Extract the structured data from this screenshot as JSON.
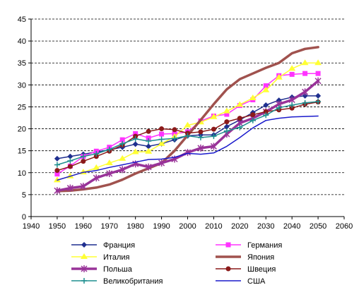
{
  "chart_data": {
    "type": "line",
    "title": "",
    "xlabel": "",
    "ylabel": "",
    "xlim": [
      1940,
      2060
    ],
    "ylim": [
      0,
      45
    ],
    "x_ticks": [
      "1940",
      "1950",
      "1960",
      "1970",
      "1980",
      "1990",
      "2000",
      "2010",
      "2020",
      "2030",
      "2040",
      "2050",
      "2060"
    ],
    "y_ticks": [
      "0",
      "5",
      "10",
      "15",
      "20",
      "25",
      "30",
      "35",
      "40",
      "45"
    ],
    "grid": "horizontal dashed",
    "legend_position": "bottom",
    "series": [
      {
        "name": "Франция",
        "color": "#1f2f8f",
        "marker": "diamond",
        "width": 1.5,
        "x": [
          1950,
          1955,
          1960,
          1965,
          1970,
          1975,
          1980,
          1985,
          1990,
          1995,
          2000,
          2005,
          2010,
          2015,
          2020,
          2025,
          2030,
          2035,
          2040,
          2045,
          2050
        ],
        "y": [
          13.2,
          13.7,
          14.2,
          14.7,
          15.2,
          15.8,
          16.5,
          16.0,
          16.6,
          17.5,
          18.4,
          18.6,
          18.6,
          20.5,
          22.0,
          23.7,
          25.4,
          26.5,
          27.2,
          27.5,
          27.5
        ]
      },
      {
        "name": "Германия",
        "color": "#ff33ff",
        "marker": "square",
        "width": 1.5,
        "x": [
          1950,
          1955,
          1960,
          1965,
          1970,
          1975,
          1980,
          1985,
          1990,
          1995,
          2000,
          2005,
          2010,
          2015,
          2020,
          2025,
          2030,
          2035,
          2040,
          2045,
          2050
        ],
        "y": [
          9.7,
          11.5,
          13.7,
          14.9,
          15.8,
          17.5,
          18.9,
          17.9,
          18.8,
          18.9,
          19.3,
          21.8,
          22.9,
          23.3,
          25.3,
          26.6,
          29.8,
          32.1,
          32.4,
          32.6,
          32.6
        ]
      },
      {
        "name": "Италия",
        "color": "#ffff33",
        "marker": "triangle",
        "width": 1.5,
        "x": [
          1950,
          1955,
          1960,
          1965,
          1970,
          1975,
          1980,
          1985,
          1990,
          1995,
          2000,
          2005,
          2010,
          2015,
          2020,
          2025,
          2030,
          2035,
          2040,
          2045,
          2050
        ],
        "y": [
          8.3,
          9.2,
          10.1,
          11.1,
          12.2,
          13.2,
          14.7,
          14.8,
          16.6,
          18.2,
          20.8,
          21.5,
          22.7,
          24.0,
          25.5,
          27.0,
          28.8,
          31.7,
          33.7,
          35.0,
          35.0
        ]
      },
      {
        "name": "Япония",
        "color": "#a0524e",
        "marker": "none",
        "width": 3.5,
        "x": [
          1950,
          1955,
          1960,
          1965,
          1970,
          1975,
          1980,
          1985,
          1990,
          1995,
          2000,
          2005,
          2010,
          2015,
          2020,
          2025,
          2030,
          2035,
          2040,
          2045,
          2050
        ],
        "y": [
          5.8,
          5.9,
          6.2,
          6.6,
          7.3,
          8.4,
          9.8,
          11.0,
          12.2,
          15.0,
          18.5,
          22.0,
          25.6,
          29.0,
          31.3,
          32.6,
          33.9,
          35.0,
          37.2,
          38.2,
          38.6
        ]
      },
      {
        "name": "Польша",
        "color": "#993399",
        "marker": "star",
        "width": 3.5,
        "x": [
          1950,
          1955,
          1960,
          1965,
          1970,
          1975,
          1980,
          1985,
          1990,
          1995,
          2000,
          2005,
          2010,
          2015,
          2020,
          2025,
          2030,
          2035,
          2040,
          2045,
          2050
        ],
        "y": [
          5.9,
          6.5,
          6.9,
          8.8,
          9.8,
          10.7,
          12.0,
          11.3,
          12.2,
          13.1,
          14.6,
          15.6,
          16.0,
          18.8,
          21.3,
          22.4,
          23.9,
          25.6,
          26.6,
          28.4,
          30.9
        ]
      },
      {
        "name": "Швеция",
        "color": "#8b1a1a",
        "marker": "circle",
        "width": 1.5,
        "x": [
          1950,
          1955,
          1960,
          1965,
          1970,
          1975,
          1980,
          1985,
          1990,
          1995,
          2000,
          2005,
          2010,
          2015,
          2020,
          2025,
          2030,
          2035,
          2040,
          2045,
          2050
        ],
        "y": [
          10.5,
          11.4,
          12.6,
          13.7,
          14.9,
          16.3,
          18.3,
          19.4,
          20.0,
          19.8,
          19.0,
          19.3,
          19.9,
          21.6,
          22.4,
          23.2,
          23.9,
          24.3,
          24.7,
          25.6,
          26.1
        ]
      },
      {
        "name": "Великобритания",
        "color": "#1f8f8f",
        "marker": "plus",
        "width": 1.5,
        "x": [
          1950,
          1955,
          1960,
          1965,
          1970,
          1975,
          1980,
          1985,
          1990,
          1995,
          2000,
          2005,
          2010,
          2015,
          2020,
          2025,
          2030,
          2035,
          2040,
          2045,
          2050
        ],
        "y": [
          11.8,
          12.7,
          13.7,
          14.3,
          15.3,
          16.6,
          17.7,
          17.2,
          17.6,
          17.8,
          18.4,
          18.0,
          18.3,
          19.5,
          20.3,
          21.9,
          23.1,
          24.8,
          25.4,
          25.9,
          26.2
        ]
      },
      {
        "name": "США",
        "color": "#1a1acc",
        "marker": "none",
        "width": 1.5,
        "x": [
          1950,
          1955,
          1960,
          1965,
          1970,
          1975,
          1980,
          1985,
          1990,
          1995,
          2000,
          2005,
          2010,
          2015,
          2020,
          2025,
          2030,
          2035,
          2040,
          2045,
          2050
        ],
        "y": [
          8.3,
          9.2,
          10.1,
          10.5,
          11.2,
          11.8,
          12.4,
          13.0,
          13.1,
          13.5,
          14.4,
          14.2,
          14.5,
          16.0,
          18.0,
          20.2,
          21.9,
          22.4,
          22.7,
          22.8,
          22.9
        ]
      }
    ]
  }
}
